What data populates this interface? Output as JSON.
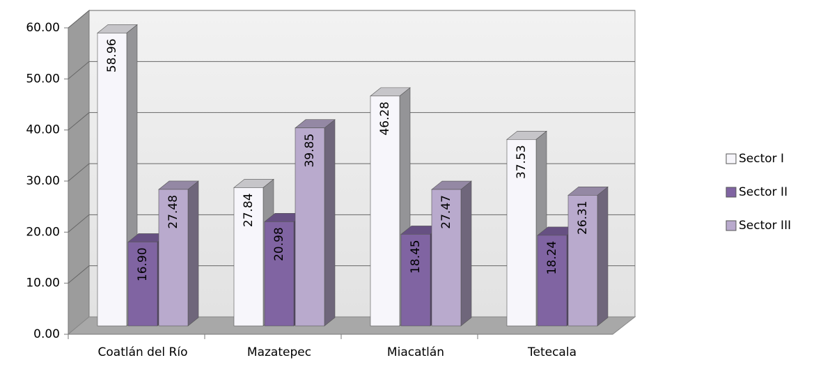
{
  "chart_data": {
    "type": "bar3d",
    "categories": [
      "Coatlán del Río",
      "Mazatepec",
      "Miacatlán",
      "Tetecala"
    ],
    "series": [
      {
        "name": "Sector I",
        "color": "#f7f6fb",
        "values": [
          58.96,
          27.84,
          46.28,
          37.53
        ],
        "value_labels": [
          "58.96",
          "27.84",
          "46.28",
          "37.53"
        ]
      },
      {
        "name": "Sector II",
        "color": "#8064a2",
        "values": [
          16.9,
          20.98,
          18.45,
          18.24
        ],
        "value_labels": [
          "16.90",
          "20.98",
          "18.45",
          "18.24"
        ]
      },
      {
        "name": "Sector III",
        "color": "#b9aacd",
        "values": [
          27.48,
          39.85,
          27.47,
          26.31
        ],
        "value_labels": [
          "27.48",
          "39.85",
          "27.47",
          "26.31"
        ]
      }
    ],
    "ylim": [
      0,
      60
    ],
    "yticks": [
      {
        "value": 0,
        "label": "0.00"
      },
      {
        "value": 10,
        "label": "10.00"
      },
      {
        "value": 20,
        "label": "20.00"
      },
      {
        "value": 30,
        "label": "30.00"
      },
      {
        "value": 40,
        "label": "40.00"
      },
      {
        "value": 50,
        "label": "50.00"
      },
      {
        "value": 60,
        "label": "60.00"
      }
    ],
    "grid": true,
    "legend": "right"
  }
}
